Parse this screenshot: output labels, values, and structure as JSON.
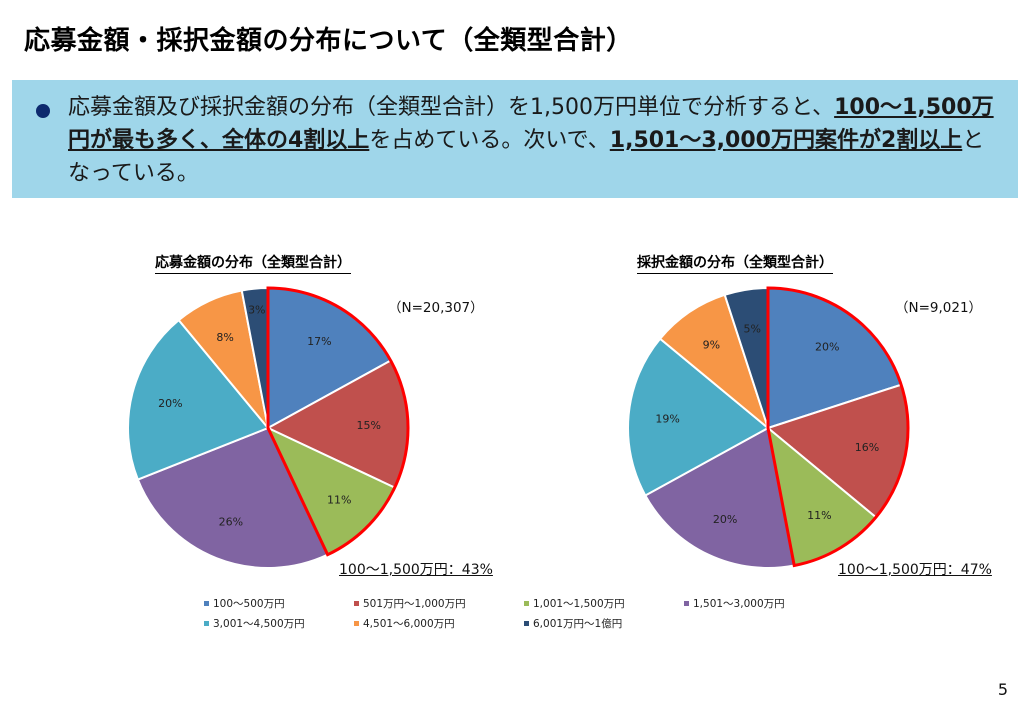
{
  "page": {
    "title": "応募金額・採択金額の分布について（全類型合計）",
    "page_number": "5"
  },
  "info": {
    "segments": [
      {
        "text": "応募金額及び採択金額の分布（全類型合計）を1,500万円単位で分析すると、",
        "bold": false
      },
      {
        "text": "100〜1,500万円が最も多く、全体の4割以上",
        "bold": true
      },
      {
        "text": "を占めている。次いで、",
        "bold": false
      },
      {
        "text": "1,501〜3,000万円案件が2割以上",
        "bold": true
      },
      {
        "text": "となっている。",
        "bold": false
      }
    ]
  },
  "colors": {
    "info_bg": "#9fd6ea",
    "bullet": "#0d2a6e",
    "highlight_outline": "#ff0000"
  },
  "legend": [
    {
      "label": "100〜500万円",
      "color": "#4f81bd"
    },
    {
      "label": "501万円〜1,000万円",
      "color": "#c0504d"
    },
    {
      "label": "1,001〜1,500万円",
      "color": "#9bbb59"
    },
    {
      "label": "1,501〜3,000万円",
      "color": "#8064a2"
    },
    {
      "label": "3,001〜4,500万円",
      "color": "#4bacc6"
    },
    {
      "label": "4,501〜6,000万円",
      "color": "#f79646"
    },
    {
      "label": "6,001万円〜1億円",
      "color": "#2c4d75"
    }
  ],
  "chart_data": [
    {
      "type": "pie",
      "title": "応募金額の分布（全類型合計）",
      "n_label": "（N=20,307）",
      "categories": [
        "100〜500万円",
        "501万円〜1,000万円",
        "1,001〜1,500万円",
        "1,501〜3,000万円",
        "3,001〜4,500万円",
        "4,501〜6,000万円",
        "6,001万円〜1億円"
      ],
      "values": [
        17,
        15,
        11,
        26,
        20,
        8,
        3
      ],
      "data_labels": [
        "17%",
        "15%",
        "11%",
        "26%",
        "20%",
        "8%",
        "3%"
      ],
      "highlight": {
        "indices": [
          0,
          1,
          2
        ],
        "label": "100〜1,500万円：43%"
      },
      "start": "12 o'clock, clockwise"
    },
    {
      "type": "pie",
      "title": "採択金額の分布（全類型合計）",
      "n_label": "（N=9,021）",
      "categories": [
        "100〜500万円",
        "501万円〜1,000万円",
        "1,001〜1,500万円",
        "1,501〜3,000万円",
        "3,001〜4,500万円",
        "4,501〜6,000万円",
        "6,001万円〜1億円"
      ],
      "values": [
        20,
        16,
        11,
        20,
        19,
        9,
        5
      ],
      "data_labels": [
        "20%",
        "16%",
        "11%",
        "20%",
        "19%",
        "9%",
        "5%"
      ],
      "highlight": {
        "indices": [
          0,
          1,
          2
        ],
        "label": "100〜1,500万円：47%"
      },
      "start": "12 o'clock, clockwise"
    }
  ]
}
